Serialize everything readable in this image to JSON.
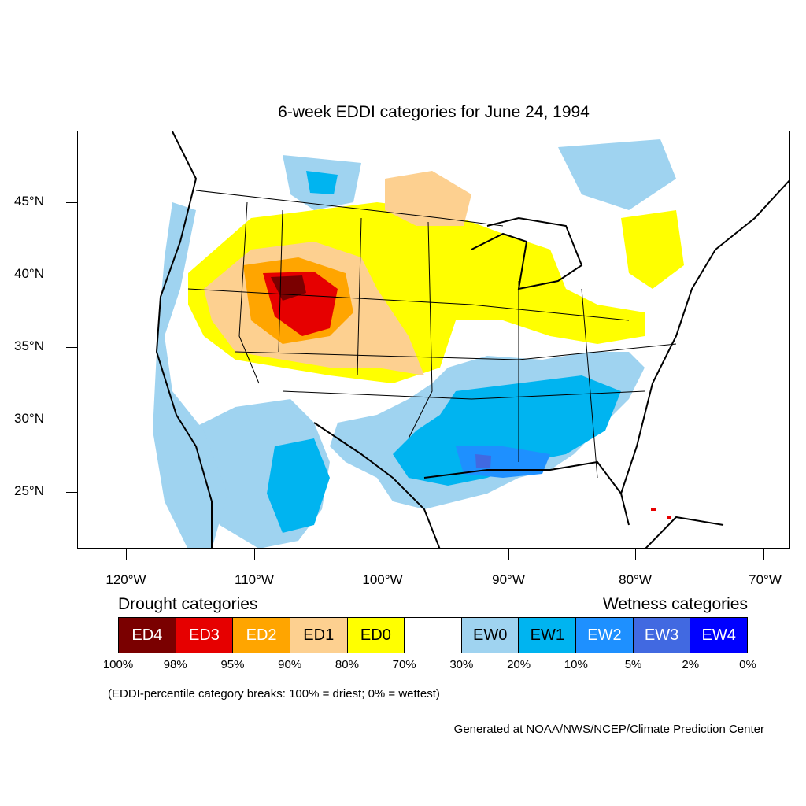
{
  "title": "6-week EDDI categories for June 24, 1994",
  "axes": {
    "latitude_labels": [
      "45°N",
      "40°N",
      "35°N",
      "30°N",
      "25°N"
    ],
    "longitude_labels": [
      "120°W",
      "110°W",
      "100°W",
      "90°W",
      "80°W",
      "70°W"
    ]
  },
  "legend": {
    "drought_heading": "Drought categories",
    "wetness_heading": "Wetness categories",
    "categories": [
      {
        "label": "ED4",
        "color": "#7a0000",
        "text_color": "#ffffff"
      },
      {
        "label": "ED3",
        "color": "#e60000",
        "text_color": "#ffffff"
      },
      {
        "label": "ED2",
        "color": "#ffa500",
        "text_color": "#ffffff"
      },
      {
        "label": "ED1",
        "color": "#fdd090",
        "text_color": "#000000"
      },
      {
        "label": "ED0",
        "color": "#ffff00",
        "text_color": "#000000"
      },
      {
        "label": "",
        "color": "#ffffff",
        "text_color": "#000000"
      },
      {
        "label": "EW0",
        "color": "#9fd3f0",
        "text_color": "#000000"
      },
      {
        "label": "EW1",
        "color": "#00b4f0",
        "text_color": "#000000"
      },
      {
        "label": "EW2",
        "color": "#1e90ff",
        "text_color": "#ffffff"
      },
      {
        "label": "EW3",
        "color": "#4169e1",
        "text_color": "#ffffff"
      },
      {
        "label": "EW4",
        "color": "#0000ff",
        "text_color": "#ffffff"
      }
    ],
    "percent_breaks": [
      "100%",
      "98%",
      "95%",
      "90%",
      "80%",
      "70%",
      "30%",
      "20%",
      "10%",
      "5%",
      "2%",
      "0%"
    ]
  },
  "note": "(EDDI-percentile category breaks: 100% = driest; 0% = wettest)",
  "credit": "Generated at NOAA/NWS/NCEP/Climate Prediction Center"
}
